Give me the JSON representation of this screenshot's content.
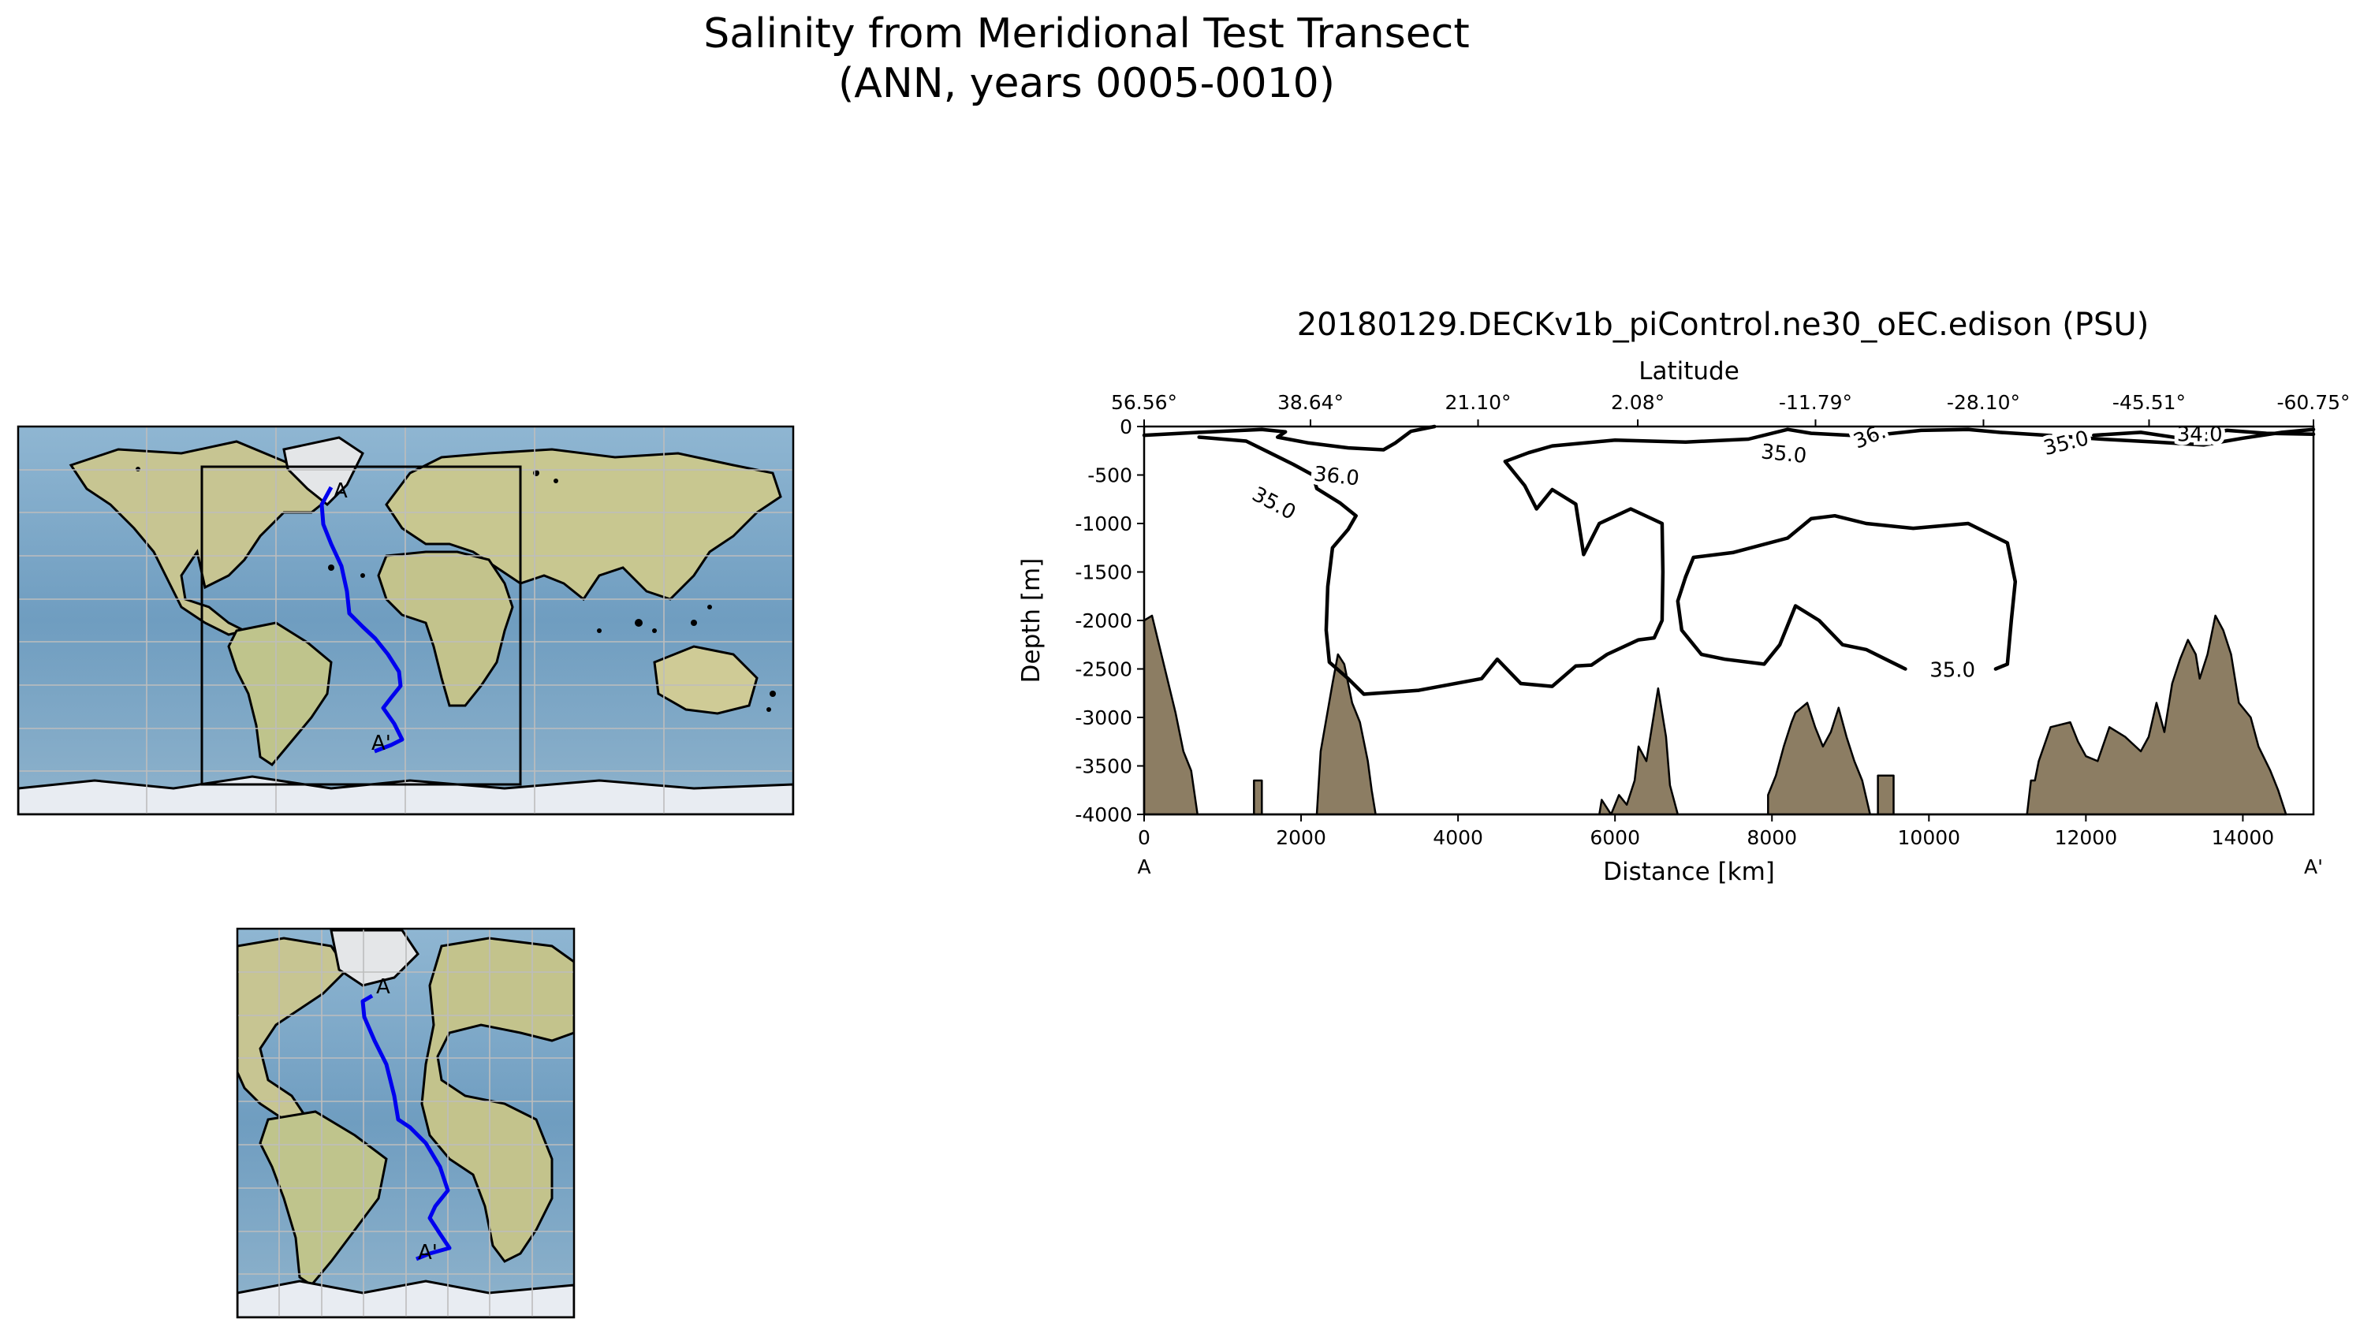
{
  "figure": {
    "title_line1": "Salinity from Meridional Test Transect",
    "title_line2": "(ANN, years 0005-0010)"
  },
  "maps": {
    "global": {
      "start_label": "A",
      "end_label": "A'"
    },
    "inset": {
      "start_label": "A",
      "end_label": "A'"
    },
    "colors": {
      "ocean": "#7ea8c8",
      "land": "#c9c89a",
      "ice": "#e8ecf2",
      "transect": "#0000ee",
      "grid": "#bdbdbd"
    }
  },
  "chart_data": {
    "type": "contour_section",
    "title": "20180129.DECKv1b_piControl.ne30_oEC.edison (PSU)",
    "xlabel": "Distance [km]",
    "ylabel": "Depth [m]",
    "top_xlabel": "Latitude",
    "xlim": [
      0,
      14900
    ],
    "ylim": [
      -4000,
      0
    ],
    "x_ticks": [
      0,
      2000,
      4000,
      6000,
      8000,
      10000,
      12000,
      14000
    ],
    "x_tick_labels": [
      "0",
      "2000",
      "4000",
      "6000",
      "8000",
      "10000",
      "12000",
      "14000"
    ],
    "y_ticks": [
      0,
      -500,
      -1000,
      -1500,
      -2000,
      -2500,
      -3000,
      -3500,
      -4000
    ],
    "y_tick_labels": [
      "0",
      "-500",
      "-1000",
      "-1500",
      "-2000",
      "-2500",
      "-3000",
      "-3500",
      "-4000"
    ],
    "top_ticks": [
      0,
      2120,
      4255,
      6290,
      8555,
      10695,
      12805,
      14900
    ],
    "top_tick_labels": [
      "56.56°",
      "38.64°",
      "21.10°",
      "2.08°",
      "-11.79°",
      "-28.10°",
      "-45.51°",
      "-60.75°"
    ],
    "endpoint_labels": {
      "start": "A",
      "end": "A'"
    },
    "bathymetry_color": "#8c7d63",
    "contour_levels": [
      34.0,
      35.0,
      36.0
    ],
    "contours": [
      {
        "level": 36.0,
        "points": [
          [
            0,
            -90
          ],
          [
            700,
            -60
          ],
          [
            1500,
            -30
          ],
          [
            1800,
            -55
          ],
          [
            1700,
            -110
          ],
          [
            2100,
            -170
          ],
          [
            2600,
            -220
          ],
          [
            3050,
            -240
          ],
          [
            3200,
            -170
          ],
          [
            3400,
            -50
          ],
          [
            3700,
            0
          ]
        ]
      },
      {
        "level": 35.0,
        "points": [
          [
            700,
            -110
          ],
          [
            1300,
            -150
          ],
          [
            1600,
            -270
          ],
          [
            1900,
            -390
          ],
          [
            2150,
            -500
          ],
          [
            2200,
            -640
          ],
          [
            2500,
            -790
          ],
          [
            2700,
            -920
          ],
          [
            2600,
            -1060
          ],
          [
            2400,
            -1250
          ],
          [
            2340,
            -1650
          ],
          [
            2320,
            -2100
          ],
          [
            2360,
            -2430
          ],
          [
            2600,
            -2600
          ],
          [
            2800,
            -2760
          ],
          [
            3500,
            -2720
          ],
          [
            4300,
            -2600
          ],
          [
            4500,
            -2400
          ],
          [
            4800,
            -2650
          ],
          [
            5200,
            -2680
          ],
          [
            5500,
            -2470
          ],
          [
            5700,
            -2460
          ],
          [
            5900,
            -2350
          ],
          [
            6300,
            -2200
          ],
          [
            6500,
            -2180
          ],
          [
            6600,
            -2000
          ],
          [
            6610,
            -1500
          ],
          [
            6600,
            -1000
          ],
          [
            6200,
            -850
          ],
          [
            5800,
            -1000
          ],
          [
            5600,
            -1320
          ],
          [
            5500,
            -800
          ],
          [
            5200,
            -650
          ],
          [
            5000,
            -850
          ],
          [
            4850,
            -610
          ],
          [
            4600,
            -360
          ],
          [
            4900,
            -270
          ],
          [
            5200,
            -200
          ],
          [
            6000,
            -140
          ],
          [
            6900,
            -160
          ],
          [
            7700,
            -130
          ],
          [
            8200,
            -30
          ],
          [
            8500,
            -70
          ],
          [
            9200,
            -100
          ],
          [
            9900,
            -40
          ],
          [
            10500,
            -30
          ],
          [
            10900,
            -60
          ],
          [
            11500,
            -90
          ],
          [
            12200,
            -130
          ],
          [
            12900,
            -160
          ],
          [
            13500,
            -190
          ],
          [
            14000,
            -120
          ],
          [
            14500,
            -60
          ],
          [
            14900,
            -30
          ]
        ]
      },
      {
        "level": 35.0,
        "points": [
          [
            6900,
            -1550
          ],
          [
            7000,
            -1350
          ],
          [
            7500,
            -1300
          ],
          [
            8200,
            -1150
          ],
          [
            8500,
            -950
          ],
          [
            8800,
            -920
          ],
          [
            9200,
            -1000
          ],
          [
            9800,
            -1050
          ],
          [
            10500,
            -1000
          ],
          [
            11000,
            -1200
          ],
          [
            11100,
            -1600
          ],
          [
            11050,
            -2000
          ],
          [
            11000,
            -2450
          ],
          [
            10850,
            -2500
          ]
        ]
      },
      {
        "level": 35.0,
        "points": [
          [
            6900,
            -1550
          ],
          [
            6800,
            -1800
          ],
          [
            6850,
            -2100
          ],
          [
            7100,
            -2350
          ],
          [
            7400,
            -2400
          ],
          [
            7900,
            -2450
          ],
          [
            8100,
            -2250
          ],
          [
            8300,
            -1850
          ],
          [
            8600,
            -2000
          ],
          [
            8900,
            -2250
          ],
          [
            9200,
            -2300
          ],
          [
            9500,
            -2420
          ],
          [
            9700,
            -2500
          ]
        ]
      },
      {
        "level": 34.0,
        "points": [
          [
            12100,
            -90
          ],
          [
            12700,
            -60
          ],
          [
            13200,
            -120
          ],
          [
            13800,
            -40
          ],
          [
            14300,
            -70
          ],
          [
            14900,
            -80
          ]
        ]
      }
    ],
    "contour_label_positions": [
      {
        "text": "36.0",
        "x": 2450,
        "y": -520,
        "rot": 6
      },
      {
        "text": "35.0",
        "x": 1650,
        "y": -800,
        "rot": 28
      },
      {
        "text": "35.0",
        "x": 8150,
        "y": -290,
        "rot": 6
      },
      {
        "text": "35.0",
        "x": 10300,
        "y": -2520,
        "rot": 0
      },
      {
        "text": "35.0",
        "x": 11750,
        "y": -180,
        "rot": -14
      },
      {
        "text": "36.",
        "x": 9250,
        "y": -110,
        "rot": -22
      },
      {
        "text": "34.0",
        "x": 13450,
        "y": -90,
        "rot": 0
      }
    ],
    "bathymetry": [
      [
        0,
        -4000
      ],
      [
        0,
        -2000
      ],
      [
        100,
        -1950
      ],
      [
        250,
        -2450
      ],
      [
        400,
        -2950
      ],
      [
        500,
        -3350
      ],
      [
        600,
        -3550
      ],
      [
        680,
        -4000
      ],
      [
        1400,
        -4000
      ],
      [
        1400,
        -3650
      ],
      [
        1500,
        -3650
      ],
      [
        1500,
        -4000
      ],
      [
        2200,
        -4000
      ],
      [
        2250,
        -3350
      ],
      [
        2400,
        -2650
      ],
      [
        2470,
        -2350
      ],
      [
        2550,
        -2450
      ],
      [
        2650,
        -2850
      ],
      [
        2750,
        -3050
      ],
      [
        2850,
        -3450
      ],
      [
        2900,
        -3750
      ],
      [
        2950,
        -4000
      ],
      [
        5800,
        -4000
      ],
      [
        5830,
        -3850
      ],
      [
        5950,
        -4000
      ],
      [
        6050,
        -3800
      ],
      [
        6150,
        -3900
      ],
      [
        6250,
        -3650
      ],
      [
        6300,
        -3300
      ],
      [
        6400,
        -3450
      ],
      [
        6500,
        -2950
      ],
      [
        6550,
        -2700
      ],
      [
        6650,
        -3200
      ],
      [
        6700,
        -3700
      ],
      [
        6800,
        -4000
      ],
      [
        7950,
        -4000
      ],
      [
        7950,
        -3800
      ],
      [
        8050,
        -3600
      ],
      [
        8150,
        -3300
      ],
      [
        8250,
        -3050
      ],
      [
        8300,
        -2950
      ],
      [
        8450,
        -2850
      ],
      [
        8550,
        -3100
      ],
      [
        8650,
        -3300
      ],
      [
        8750,
        -3150
      ],
      [
        8850,
        -2900
      ],
      [
        8950,
        -3200
      ],
      [
        9050,
        -3450
      ],
      [
        9150,
        -3650
      ],
      [
        9250,
        -4000
      ],
      [
        9350,
        -4000
      ],
      [
        9350,
        -3600
      ],
      [
        9550,
        -3600
      ],
      [
        9550,
        -4000
      ],
      [
        11250,
        -4000
      ],
      [
        11300,
        -3650
      ],
      [
        11350,
        -3650
      ],
      [
        11400,
        -3450
      ],
      [
        11550,
        -3100
      ],
      [
        11800,
        -3050
      ],
      [
        11900,
        -3250
      ],
      [
        12000,
        -3400
      ],
      [
        12150,
        -3450
      ],
      [
        12300,
        -3100
      ],
      [
        12500,
        -3200
      ],
      [
        12700,
        -3350
      ],
      [
        12800,
        -3200
      ],
      [
        12900,
        -2850
      ],
      [
        13000,
        -3150
      ],
      [
        13100,
        -2650
      ],
      [
        13200,
        -2400
      ],
      [
        13300,
        -2200
      ],
      [
        13400,
        -2350
      ],
      [
        13450,
        -2600
      ],
      [
        13550,
        -2350
      ],
      [
        13650,
        -1950
      ],
      [
        13750,
        -2100
      ],
      [
        13850,
        -2350
      ],
      [
        13950,
        -2850
      ],
      [
        14100,
        -3000
      ],
      [
        14200,
        -3300
      ],
      [
        14350,
        -3550
      ],
      [
        14450,
        -3750
      ],
      [
        14550,
        -4000
      ]
    ]
  }
}
